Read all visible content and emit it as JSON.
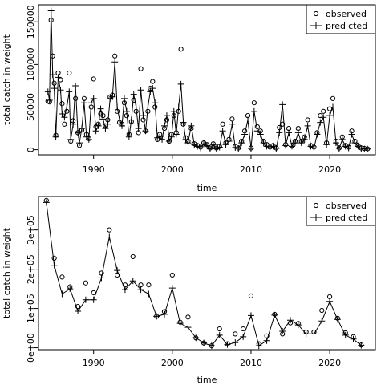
{
  "chart_data": [
    {
      "type": "line",
      "xlabel": "time",
      "ylabel": "total catch in weight",
      "xlim": [
        1983.0,
        2025.8
      ],
      "ylim": [
        -6000,
        170000
      ],
      "xticks": [
        1990,
        2000,
        2010,
        2020
      ],
      "yticks": [
        0,
        50000,
        100000,
        150000
      ],
      "ytick_labels": [
        "0",
        "50000",
        "100000",
        "150000"
      ],
      "legend": {
        "position": "top-right",
        "entries": [
          "observed",
          "predicted"
        ]
      },
      "series": [
        {
          "name": "observed",
          "style": "points-circle",
          "x": [
            1984.2,
            1984.4,
            1984.6,
            1984.8,
            1985.0,
            1985.2,
            1985.5,
            1985.8,
            1986.0,
            1986.3,
            1986.6,
            1986.9,
            1987.1,
            1987.4,
            1987.7,
            1988.0,
            1988.2,
            1988.5,
            1988.8,
            1989.1,
            1989.4,
            1989.7,
            1990.0,
            1990.3,
            1990.6,
            1990.9,
            1991.2,
            1991.5,
            1991.8,
            1992.1,
            1992.4,
            1992.7,
            1993.0,
            1993.3,
            1993.6,
            1993.9,
            1994.2,
            1994.5,
            1994.8,
            1995.1,
            1995.4,
            1995.7,
            1996.0,
            1996.3,
            1996.6,
            1996.9,
            1997.2,
            1997.5,
            1997.8,
            1998.1,
            1998.4,
            1998.7,
            1999.0,
            1999.3,
            1999.6,
            1999.9,
            2000.2,
            2000.5,
            2000.8,
            2001.1,
            2001.4,
            2001.7,
            2002.0,
            2002.4,
            2002.8,
            2003.2,
            2003.6,
            2004.0,
            2004.4,
            2004.8,
            2005.2,
            2005.6,
            2006.0,
            2006.4,
            2006.8,
            2007.2,
            2007.6,
            2008.0,
            2008.4,
            2008.8,
            2009.2,
            2009.6,
            2010.0,
            2010.4,
            2010.8,
            2011.2,
            2011.6,
            2012.0,
            2012.4,
            2012.8,
            2013.2,
            2013.6,
            2014.0,
            2014.4,
            2014.8,
            2015.2,
            2015.6,
            2016.0,
            2016.4,
            2016.8,
            2017.2,
            2017.6,
            2018.0,
            2018.4,
            2018.8,
            2019.2,
            2019.6,
            2020.0,
            2020.4,
            2020.8,
            2021.2,
            2021.6,
            2022.0,
            2022.4,
            2022.8,
            2023.2,
            2023.6,
            2024.0,
            2024.4,
            2024.8
          ],
          "y": [
            57000,
            56000,
            152000,
            110000,
            78000,
            17000,
            90000,
            82000,
            54000,
            30000,
            45000,
            90000,
            10000,
            34000,
            60000,
            20000,
            5000,
            23000,
            60000,
            18000,
            13000,
            50000,
            83000,
            27000,
            30000,
            42000,
            40000,
            28000,
            35000,
            62000,
            64000,
            110000,
            45000,
            32000,
            30000,
            55000,
            40000,
            18000,
            33000,
            58000,
            45000,
            20000,
            95000,
            35000,
            22000,
            45000,
            72000,
            80000,
            50000,
            12000,
            18000,
            14000,
            25000,
            35000,
            10000,
            18000,
            40000,
            20000,
            45000,
            118000,
            30000,
            14000,
            10000,
            25000,
            7000,
            5000,
            3000,
            8000,
            6000,
            2000,
            7000,
            2000,
            4000,
            30000,
            8000,
            12000,
            36000,
            4000,
            2000,
            10000,
            22000,
            40000,
            2000,
            55000,
            27000,
            22000,
            10000,
            6000,
            3000,
            5000,
            2000,
            26000,
            30000,
            6000,
            25000,
            5000,
            10000,
            25000,
            10000,
            15000,
            35000,
            5000,
            3000,
            20000,
            40000,
            45000,
            8000,
            48000,
            60000,
            10000,
            2000,
            15000,
            5000,
            3000,
            22000,
            10000,
            5000,
            2000,
            1500,
            1000
          ],
          "marker_color": "#000000"
        },
        {
          "name": "predicted",
          "style": "line-plus",
          "x": [
            1984.2,
            1984.4,
            1984.6,
            1984.8,
            1985.0,
            1985.2,
            1985.5,
            1985.8,
            1986.0,
            1986.3,
            1986.6,
            1986.9,
            1987.1,
            1987.4,
            1987.7,
            1988.0,
            1988.2,
            1988.5,
            1988.8,
            1989.1,
            1989.4,
            1989.7,
            1990.0,
            1990.3,
            1990.6,
            1990.9,
            1991.2,
            1991.5,
            1991.8,
            1992.1,
            1992.4,
            1992.7,
            1993.0,
            1993.3,
            1993.6,
            1993.9,
            1994.2,
            1994.5,
            1994.8,
            1995.1,
            1995.4,
            1995.7,
            1996.0,
            1996.3,
            1996.6,
            1996.9,
            1997.2,
            1997.5,
            1997.8,
            1998.1,
            1998.4,
            1998.7,
            1999.0,
            1999.3,
            1999.6,
            1999.9,
            2000.2,
            2000.5,
            2000.8,
            2001.1,
            2001.4,
            2001.7,
            2002.0,
            2002.4,
            2002.8,
            2003.2,
            2003.6,
            2004.0,
            2004.4,
            2004.8,
            2005.2,
            2005.6,
            2006.0,
            2006.4,
            2006.8,
            2007.2,
            2007.6,
            2008.0,
            2008.4,
            2008.8,
            2009.2,
            2009.6,
            2010.0,
            2010.4,
            2010.8,
            2011.2,
            2011.6,
            2012.0,
            2012.4,
            2012.8,
            2013.2,
            2013.6,
            2014.0,
            2014.4,
            2014.8,
            2015.2,
            2015.6,
            2016.0,
            2016.4,
            2016.8,
            2017.2,
            2017.6,
            2018.0,
            2018.4,
            2018.8,
            2019.2,
            2019.6,
            2020.0,
            2020.4,
            2020.8,
            2021.2,
            2021.6,
            2022.0,
            2022.4,
            2022.8,
            2023.2,
            2023.6,
            2024.0,
            2024.4,
            2024.8
          ],
          "y": [
            68000,
            58000,
            163000,
            88000,
            72000,
            15000,
            85000,
            70000,
            42000,
            38000,
            50000,
            68000,
            12000,
            30000,
            75000,
            20000,
            8000,
            25000,
            55000,
            15000,
            12000,
            55000,
            60000,
            22000,
            28000,
            48000,
            36000,
            25000,
            30000,
            60000,
            62000,
            103000,
            50000,
            35000,
            28000,
            60000,
            45000,
            15000,
            35000,
            65000,
            50000,
            25000,
            70000,
            40000,
            22000,
            50000,
            68000,
            72000,
            55000,
            14000,
            15000,
            12000,
            28000,
            40000,
            10000,
            15000,
            45000,
            18000,
            50000,
            77000,
            32000,
            12000,
            8000,
            28000,
            6000,
            4000,
            2000,
            7000,
            5000,
            1000,
            6000,
            1000,
            3000,
            22000,
            6000,
            10000,
            30000,
            2500,
            1500,
            8000,
            18000,
            35000,
            1500,
            45000,
            22000,
            18000,
            8000,
            4000,
            2000,
            4000,
            1500,
            20000,
            53000,
            5000,
            20000,
            4000,
            8000,
            20000,
            8000,
            12000,
            28000,
            4000,
            2000,
            18000,
            32000,
            38000,
            6000,
            40000,
            50000,
            8000,
            1500,
            12000,
            4000,
            2000,
            18000,
            8000,
            4000,
            1500,
            1000,
            800
          ],
          "line_color": "#000000"
        }
      ]
    },
    {
      "type": "line",
      "xlabel": "time",
      "ylabel": "total catch in weight",
      "xlim": [
        1983.0,
        2025.8
      ],
      "ylim": [
        -5000,
        385000
      ],
      "xticks": [
        1990,
        2000,
        2010,
        2020
      ],
      "yticks": [
        0,
        100000,
        200000,
        300000
      ],
      "ytick_labels": [
        "0e+00",
        "1e+05",
        "2e+05",
        "3e+05"
      ],
      "legend": {
        "position": "top-right",
        "entries": [
          "observed",
          "predicted"
        ]
      },
      "series": [
        {
          "name": "observed",
          "style": "points-circle",
          "x": [
            1984,
            1985,
            1986,
            1987,
            1988,
            1989,
            1990,
            1991,
            1992,
            1993,
            1994,
            1995,
            1996,
            1997,
            1998,
            1999,
            2000,
            2001,
            2002,
            2003,
            2004,
            2005,
            2006,
            2007,
            2008,
            2009,
            2010,
            2011,
            2012,
            2013,
            2014,
            2015,
            2016,
            2017,
            2018,
            2019,
            2020,
            2021,
            2022,
            2023,
            2024
          ],
          "y": [
            375000,
            228000,
            180000,
            155000,
            105000,
            165000,
            140000,
            190000,
            300000,
            185000,
            160000,
            232000,
            160000,
            160000,
            80000,
            92000,
            185000,
            65000,
            78000,
            25000,
            12000,
            5000,
            48000,
            10000,
            35000,
            48000,
            132000,
            10000,
            30000,
            85000,
            35000,
            63000,
            62000,
            40000,
            40000,
            95000,
            130000,
            75000,
            38000,
            28000,
            7000
          ],
          "marker_color": "#000000"
        },
        {
          "name": "predicted",
          "style": "line-plus",
          "x": [
            1984,
            1985,
            1986,
            1987,
            1988,
            1989,
            1990,
            1991,
            1992,
            1993,
            1994,
            1995,
            1996,
            1997,
            1998,
            1999,
            2000,
            2001,
            2002,
            2003,
            2004,
            2005,
            2006,
            2007,
            2008,
            2009,
            2010,
            2011,
            2012,
            2013,
            2014,
            2015,
            2016,
            2017,
            2018,
            2019,
            2020,
            2021,
            2022,
            2023,
            2024
          ],
          "y": [
            370000,
            210000,
            137000,
            150000,
            93000,
            122000,
            122000,
            178000,
            282000,
            197000,
            148000,
            170000,
            148000,
            137000,
            80000,
            85000,
            152000,
            62000,
            52000,
            25000,
            12000,
            5000,
            32000,
            8000,
            13000,
            28000,
            82000,
            5000,
            18000,
            83000,
            42000,
            70000,
            58000,
            35000,
            35000,
            68000,
            118000,
            72000,
            32000,
            22000,
            6000
          ],
          "line_color": "#000000"
        }
      ]
    }
  ]
}
